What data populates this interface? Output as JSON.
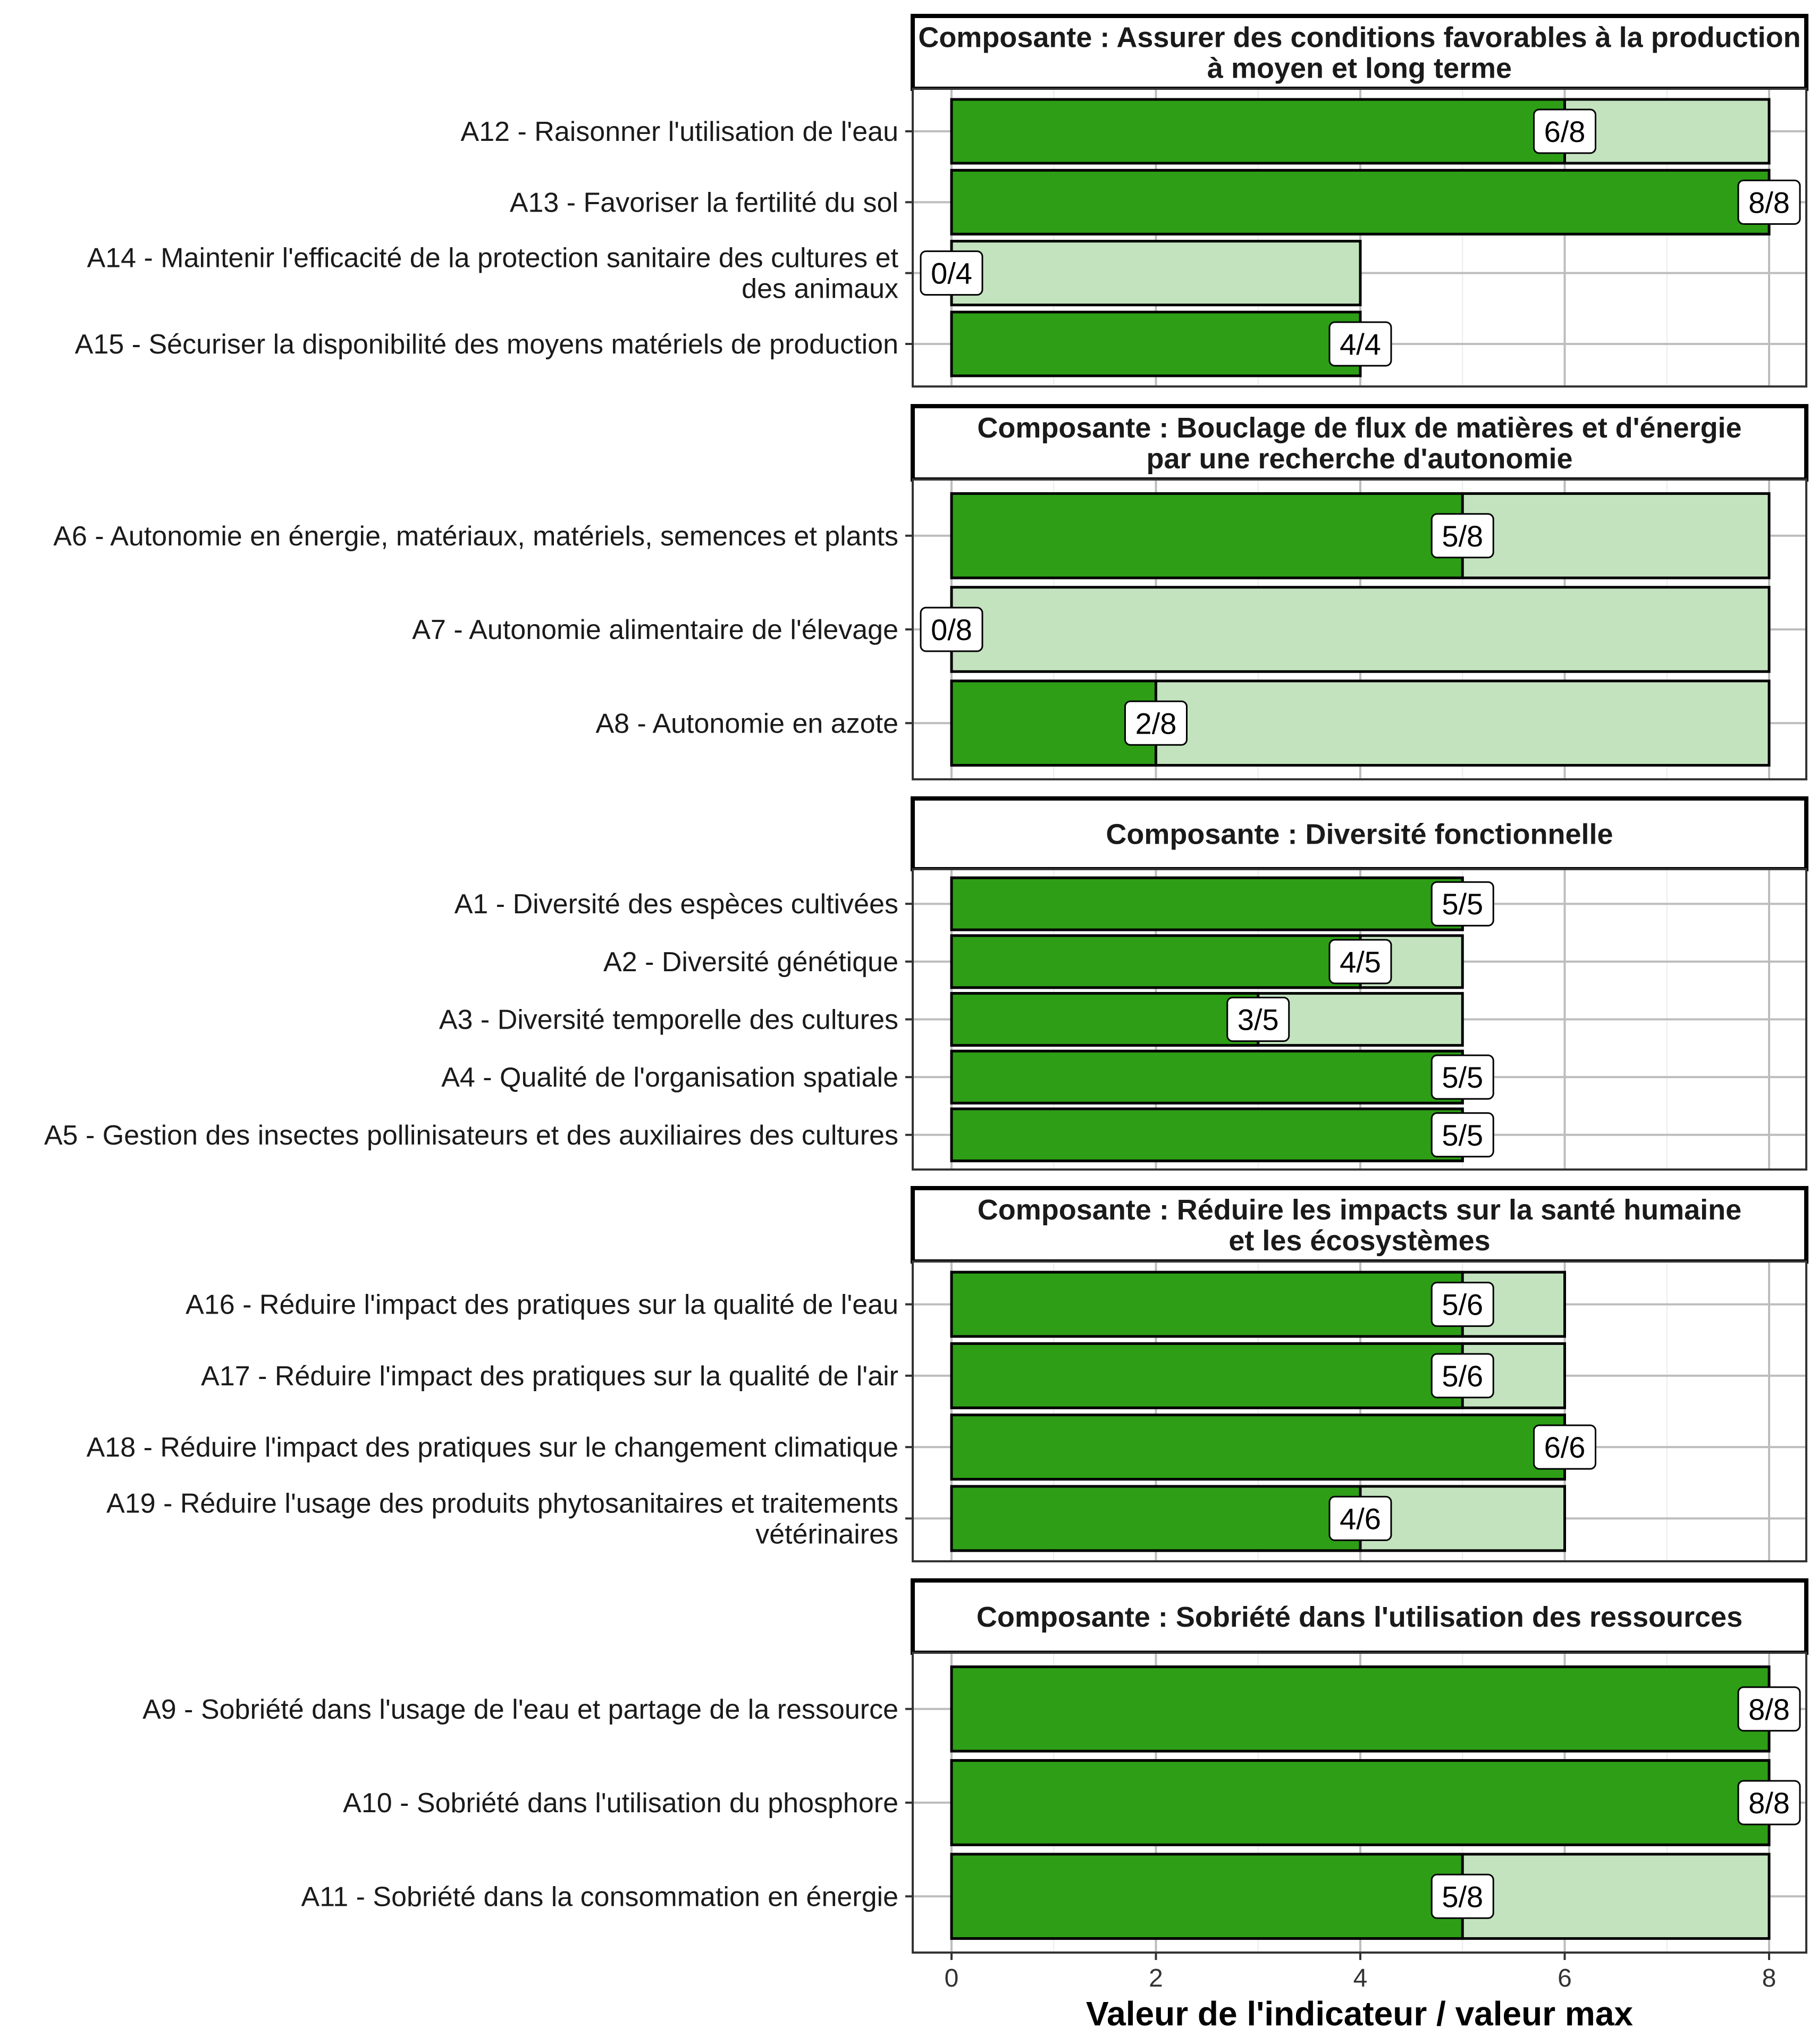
{
  "chart_data": {
    "type": "bar",
    "orientation": "horizontal",
    "xlabel": "Valeur de l'indicateur / valeur max",
    "xlim": [
      0,
      8
    ],
    "xticks": [
      "0",
      "2",
      "4",
      "6",
      "8"
    ],
    "grid": true,
    "colors": {
      "value": "#2e9e17",
      "max": "#c3e3bf",
      "outline": "#000000",
      "grid_major": "#bdbdbd",
      "grid_minor": "#ececec"
    },
    "panels": [
      {
        "title": [
          "Composante : Assurer des conditions favorables à la production",
          "à moyen et long terme"
        ],
        "indicators": [
          {
            "label": [
              "A12 - Raisonner l'utilisation de l'eau"
            ],
            "value": 6,
            "max": 8,
            "text": "6/8"
          },
          {
            "label": [
              "A13 - Favoriser la fertilité du sol"
            ],
            "value": 8,
            "max": 8,
            "text": "8/8"
          },
          {
            "label": [
              "A14 - Maintenir l'efficacité de la protection sanitaire des cultures et",
              "des animaux"
            ],
            "value": 0,
            "max": 4,
            "text": "0/4"
          },
          {
            "label": [
              "A15 - Sécuriser la disponibilité des moyens matériels de production"
            ],
            "value": 4,
            "max": 4,
            "text": "4/4"
          }
        ]
      },
      {
        "title": [
          "Composante : Bouclage de flux de matières et d'énergie",
          "par une recherche d'autonomie"
        ],
        "indicators": [
          {
            "label": [
              "A6 - Autonomie en énergie, matériaux, matériels, semences et plants"
            ],
            "value": 5,
            "max": 8,
            "text": "5/8"
          },
          {
            "label": [
              "A7 - Autonomie alimentaire de l'élevage"
            ],
            "value": 0,
            "max": 8,
            "text": "0/8"
          },
          {
            "label": [
              "A8 - Autonomie en azote"
            ],
            "value": 2,
            "max": 8,
            "text": "2/8"
          }
        ]
      },
      {
        "title": [
          "Composante : Diversité fonctionnelle"
        ],
        "indicators": [
          {
            "label": [
              "A1 - Diversité des espèces cultivées"
            ],
            "value": 5,
            "max": 5,
            "text": "5/5"
          },
          {
            "label": [
              "A2 - Diversité génétique"
            ],
            "value": 4,
            "max": 5,
            "text": "4/5"
          },
          {
            "label": [
              "A3 - Diversité temporelle des cultures"
            ],
            "value": 3,
            "max": 5,
            "text": "3/5"
          },
          {
            "label": [
              "A4 - Qualité de l'organisation spatiale"
            ],
            "value": 5,
            "max": 5,
            "text": "5/5"
          },
          {
            "label": [
              "A5 - Gestion des insectes pollinisateurs et des auxiliaires des cultures"
            ],
            "value": 5,
            "max": 5,
            "text": "5/5"
          }
        ]
      },
      {
        "title": [
          "Composante : Réduire les impacts sur la santé humaine",
          "et les écosystèmes"
        ],
        "indicators": [
          {
            "label": [
              "A16 - Réduire l'impact des pratiques sur la qualité de l'eau"
            ],
            "value": 5,
            "max": 6,
            "text": "5/6"
          },
          {
            "label": [
              "A17 - Réduire l'impact des pratiques sur la qualité de l'air"
            ],
            "value": 5,
            "max": 6,
            "text": "5/6"
          },
          {
            "label": [
              "A18 - Réduire l'impact des pratiques sur le changement climatique"
            ],
            "value": 6,
            "max": 6,
            "text": "6/6"
          },
          {
            "label": [
              "A19 - Réduire l'usage des produits phytosanitaires et traitements",
              "vétérinaires"
            ],
            "value": 4,
            "max": 6,
            "text": "4/6"
          }
        ]
      },
      {
        "title": [
          "Composante : Sobriété dans l'utilisation des ressources"
        ],
        "indicators": [
          {
            "label": [
              "A9 - Sobriété dans l'usage de l'eau et partage de la ressource"
            ],
            "value": 8,
            "max": 8,
            "text": "8/8"
          },
          {
            "label": [
              "A10 - Sobriété dans l'utilisation du phosphore"
            ],
            "value": 8,
            "max": 8,
            "text": "8/8"
          },
          {
            "label": [
              "A11 - Sobriété dans la consommation en énergie"
            ],
            "value": 5,
            "max": 8,
            "text": "5/8"
          }
        ]
      }
    ]
  }
}
